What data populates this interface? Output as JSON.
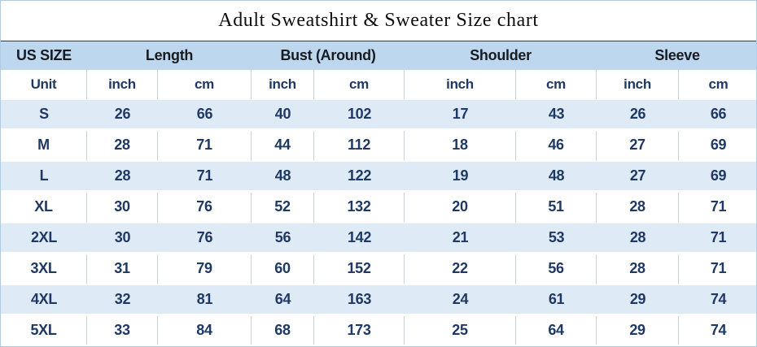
{
  "title": "Adult Sweatshirt & Sweater Size chart",
  "colors": {
    "header_bg": "#bdd7ee",
    "stripe_bg": "#deebf7",
    "value_text": "#1f3864",
    "header_text": "#181b21",
    "divider": "#c9d1d9",
    "outer_border": "#aecbe4",
    "header_top_rule": "#3a3a3a"
  },
  "chart_data": {
    "type": "table",
    "title": "Adult Sweatshirt & Sweater Size chart",
    "group_headers": [
      {
        "label": "US SIZE",
        "span": 1
      },
      {
        "label": "Length",
        "span": 2
      },
      {
        "label": "Bust (Around)",
        "span": 2
      },
      {
        "label": "Shoulder",
        "span": 2
      },
      {
        "label": "Sleeve",
        "span": 2
      }
    ],
    "unit_row": [
      "Unit",
      "inch",
      "cm",
      "inch",
      "cm",
      "inch",
      "cm",
      "inch",
      "cm"
    ],
    "rows": [
      {
        "size": "S",
        "values": [
          26,
          66,
          40,
          102,
          17,
          43,
          26,
          66
        ]
      },
      {
        "size": "M",
        "values": [
          28,
          71,
          44,
          112,
          18,
          46,
          27,
          69
        ]
      },
      {
        "size": "L",
        "values": [
          28,
          71,
          48,
          122,
          19,
          48,
          27,
          69
        ]
      },
      {
        "size": "XL",
        "values": [
          30,
          76,
          52,
          132,
          20,
          51,
          28,
          71
        ]
      },
      {
        "size": "2XL",
        "values": [
          30,
          76,
          56,
          142,
          21,
          53,
          28,
          71
        ]
      },
      {
        "size": "3XL",
        "values": [
          31,
          79,
          60,
          152,
          22,
          56,
          28,
          71
        ]
      },
      {
        "size": "4XL",
        "values": [
          32,
          81,
          64,
          163,
          24,
          61,
          29,
          74
        ]
      },
      {
        "size": "5XL",
        "values": [
          33,
          84,
          68,
          173,
          25,
          64,
          29,
          74
        ]
      }
    ]
  }
}
